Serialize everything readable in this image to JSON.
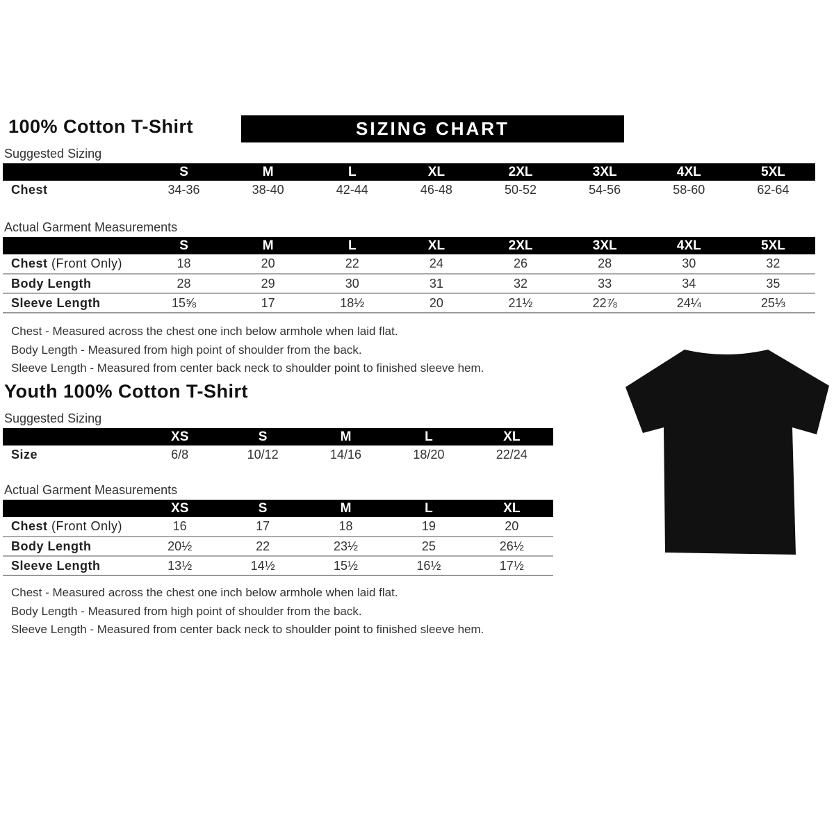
{
  "adult": {
    "title": "100% Cotton T-Shirt",
    "banner": "SIZING CHART",
    "suggested": {
      "label": "Suggested Sizing",
      "sizes": [
        "S",
        "M",
        "L",
        "XL",
        "2XL",
        "3XL",
        "4XL",
        "5XL"
      ],
      "rows": [
        {
          "label": "Chest",
          "values": [
            "34-36",
            "38-40",
            "42-44",
            "46-48",
            "50-52",
            "54-56",
            "58-60",
            "62-64"
          ]
        }
      ]
    },
    "actual": {
      "label": "Actual Garment Measurements",
      "sizes": [
        "S",
        "M",
        "L",
        "XL",
        "2XL",
        "3XL",
        "4XL",
        "5XL"
      ],
      "rows": [
        {
          "label": "Chest",
          "suffix": " (Front Only)",
          "values": [
            "18",
            "20",
            "22",
            "24",
            "26",
            "28",
            "30",
            "32"
          ]
        },
        {
          "label": "Body Length",
          "suffix": "",
          "values": [
            "28",
            "29",
            "30",
            "31",
            "32",
            "33",
            "34",
            "35"
          ]
        },
        {
          "label": "Sleeve Length",
          "suffix": "",
          "values": [
            "15⅝",
            "17",
            "18½",
            "20",
            "21½",
            "22⅞",
            "24¼",
            "25⅓"
          ]
        }
      ]
    },
    "notes": [
      "Chest - Measured across the chest one inch below armhole when laid flat.",
      "Body Length - Measured from high point of shoulder from the back.",
      "Sleeve Length - Measured from center back neck to shoulder point to finished sleeve hem."
    ]
  },
  "youth": {
    "title": "Youth 100% Cotton T-Shirt",
    "suggested": {
      "label": "Suggested Sizing",
      "sizes": [
        "XS",
        "S",
        "M",
        "L",
        "XL"
      ],
      "rows": [
        {
          "label": "Size",
          "values": [
            "6/8",
            "10/12",
            "14/16",
            "18/20",
            "22/24"
          ]
        }
      ]
    },
    "actual": {
      "label": "Actual Garment Measurements",
      "sizes": [
        "XS",
        "S",
        "M",
        "L",
        "XL"
      ],
      "rows": [
        {
          "label": "Chest",
          "suffix": " (Front Only)",
          "values": [
            "16",
            "17",
            "18",
            "19",
            "20"
          ]
        },
        {
          "label": "Body Length",
          "suffix": "",
          "values": [
            "20½",
            "22",
            "23½",
            "25",
            "26½"
          ]
        },
        {
          "label": "Sleeve Length",
          "suffix": "",
          "values": [
            "13½",
            "14½",
            "15½",
            "16½",
            "17½"
          ]
        }
      ]
    },
    "notes": [
      "Chest - Measured across the chest one inch below armhole when laid flat.",
      "Body Length - Measured from high point of shoulder from the back.",
      "Sleeve Length - Measured from center back neck to shoulder point to finished sleeve hem."
    ]
  },
  "shirt_color": "#111111"
}
